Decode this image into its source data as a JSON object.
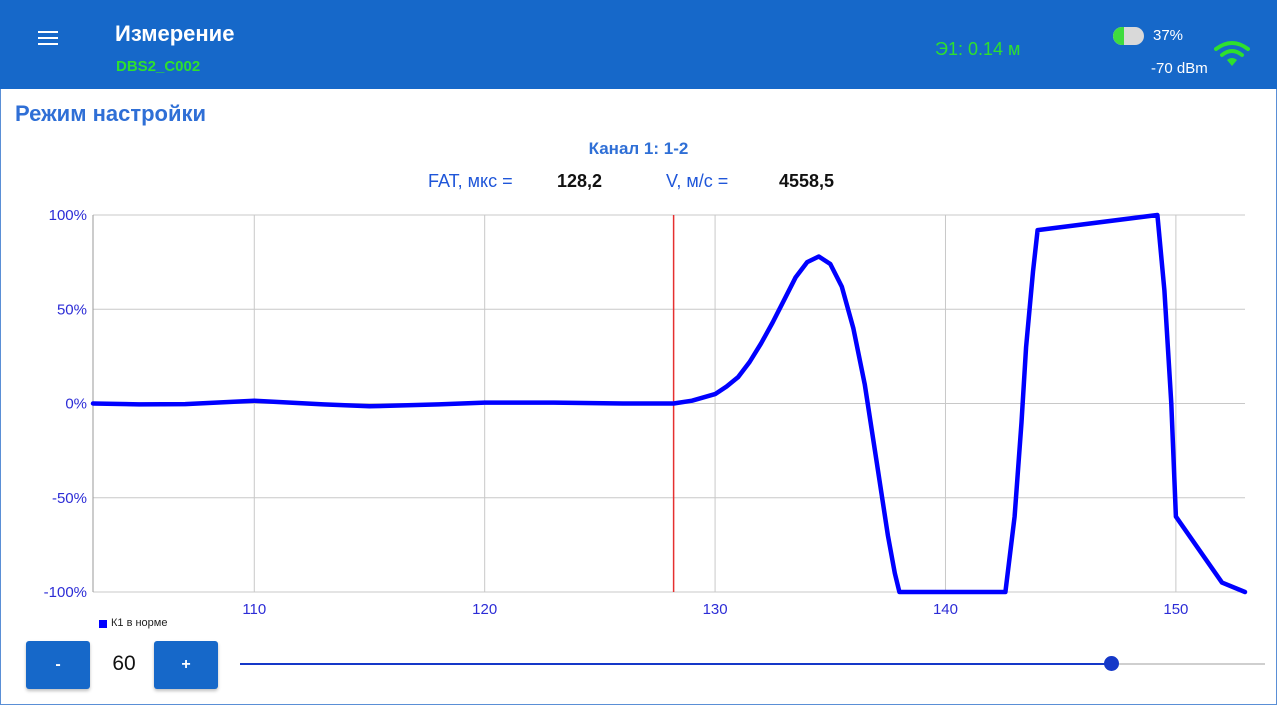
{
  "header": {
    "title": "Измерение",
    "device_id": "DBS2_C002",
    "e1": "Э1: 0.14 м",
    "battery_percent": "37%",
    "battery_level": 0.37,
    "signal": "-70 dBm",
    "icons": {
      "menu": "menu-icon",
      "battery": "battery-icon",
      "wifi": "wifi-icon"
    },
    "colors": {
      "bar": "#1668c9",
      "accent_green": "#2ee02e"
    }
  },
  "mode_title": "Режим настройки",
  "channel_label": "Канал 1: 1-2",
  "readouts": {
    "fat_label": "FAT, мкс =",
    "fat_value": "128,2",
    "v_label": "V, м/с =",
    "v_value": "4558,5"
  },
  "chart_data": {
    "type": "line",
    "xlim": [
      103,
      153
    ],
    "ylim": [
      -100,
      100
    ],
    "x_ticks": [
      110,
      120,
      130,
      140,
      150
    ],
    "y_ticks": [
      100,
      50,
      0,
      -50,
      -100
    ],
    "y_tick_labels": [
      "100%",
      "50%",
      "0%",
      "-50%",
      "-100%"
    ],
    "grid": true,
    "marker_x": 128.2,
    "marker_color": "#e53030",
    "series": [
      {
        "name": "К1 в норме",
        "color": "#0000ff",
        "x": [
          103,
          105,
          107,
          110,
          113,
          115,
          118,
          120,
          123,
          126,
          128.2,
          129,
          130,
          130.5,
          131,
          131.5,
          132,
          132.5,
          133,
          133.5,
          134,
          134.5,
          135,
          135.5,
          136,
          136.5,
          137,
          137.5,
          137.8,
          138,
          142.6,
          143,
          143.3,
          143.5,
          143.8,
          144,
          149.2,
          149.5,
          149.8,
          150,
          152,
          153
        ],
        "values": [
          0,
          -0.5,
          -0.3,
          1.5,
          -0.5,
          -1.5,
          -0.5,
          0.5,
          0.5,
          0,
          0,
          1.5,
          5,
          9,
          14,
          22,
          32,
          43,
          55,
          67,
          75,
          78,
          74,
          62,
          40,
          10,
          -30,
          -70,
          -90,
          -100,
          -100,
          -60,
          -10,
          30,
          70,
          92,
          100,
          60,
          0,
          -60,
          -95,
          -100
        ]
      }
    ],
    "legend": "bottom-left"
  },
  "controls": {
    "minus_label": "-",
    "plus_label": "+",
    "gain_value": "60",
    "slider_fraction": 0.85
  }
}
